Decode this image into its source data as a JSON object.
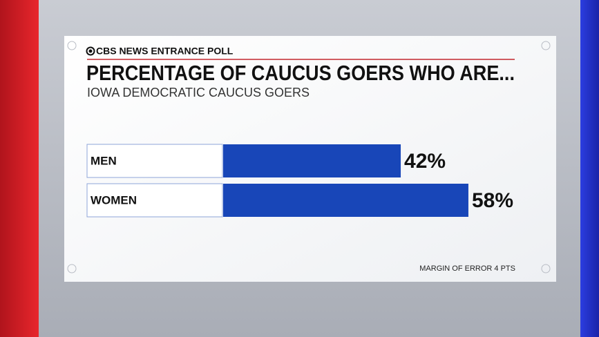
{
  "chart_data": {
    "type": "bar",
    "orientation": "horizontal",
    "source": "CBS NEWS ENTRANCE POLL",
    "title": "PERCENTAGE OF CAUCUS GOERS WHO ARE...",
    "subtitle": "IOWA DEMOCRATIC CAUCUS GOERS",
    "categories": [
      "MEN",
      "WOMEN"
    ],
    "values": [
      42,
      58
    ],
    "value_labels": [
      "42%",
      "58%"
    ],
    "color": "#1846b8",
    "note": "MARGIN OF ERROR 4 PTS"
  }
}
